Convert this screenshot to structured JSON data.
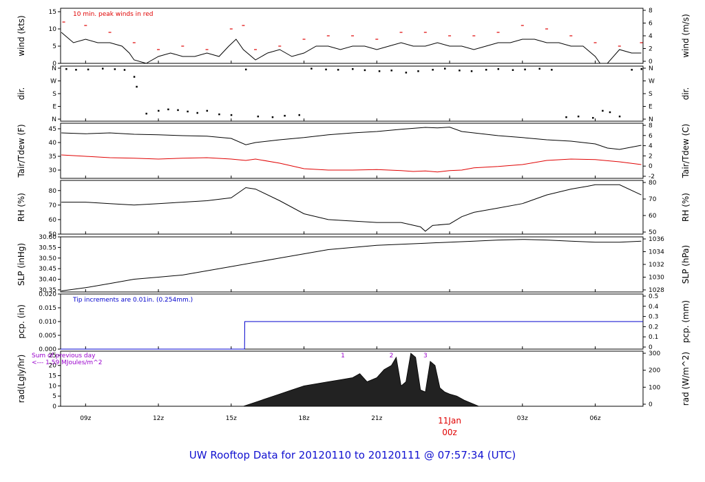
{
  "title": "UW Rooftop Data for 20120110  to  20120111 @ 07:57:34  (UTC)",
  "time_axis": {
    "ticks": [
      {
        "label": "09z",
        "hour": 9
      },
      {
        "label": "12z",
        "hour": 12
      },
      {
        "label": "15z",
        "hour": 15
      },
      {
        "label": "18z",
        "hour": 18
      },
      {
        "label": "21z",
        "hour": 21
      },
      {
        "label": "03z",
        "hour": 27
      },
      {
        "label": "06z",
        "hour": 30
      }
    ],
    "day_marker": {
      "date": "11Jan",
      "hour_label": "00z",
      "hour": 24,
      "color": "#e00000"
    },
    "start_hour": 7.97,
    "end_hour": 31.97
  },
  "colors": {
    "series": "#000000",
    "dewpoint": "#e00000",
    "precip": "#0000cc",
    "annotation_red": "#e00000",
    "annotation_purple": "#9900cc",
    "title": "#1010d0"
  },
  "chart_data": [
    {
      "type": "line",
      "id": "wind",
      "ylabel_left": "wind (kts)",
      "ylabel_right": "wind (m/s)",
      "ylim": [
        0,
        16
      ],
      "yticks_left": [
        "0",
        "5",
        "10",
        "15"
      ],
      "yticks_right": [
        "0",
        "2",
        "4",
        "6",
        "8"
      ],
      "annotation": "10 min. peak winds in red",
      "series": [
        {
          "name": "wind speed",
          "x": [
            8.0,
            8.5,
            9,
            9.5,
            10,
            10.5,
            10.8,
            11,
            11.5,
            12,
            12.5,
            13,
            13.5,
            14,
            14.5,
            14.9,
            15.2,
            15.5,
            16,
            16.5,
            17,
            17.5,
            18,
            18.5,
            19,
            19.5,
            20,
            20.5,
            21,
            21.5,
            22,
            22.5,
            23,
            23.5,
            24,
            24.5,
            25,
            25.5,
            26,
            26.5,
            27,
            27.5,
            28,
            28.5,
            29,
            29.5,
            30,
            30.2,
            30.5,
            31,
            31.5,
            31.9
          ],
          "values": [
            9,
            6,
            7,
            6,
            6,
            5,
            3,
            1,
            0,
            2,
            3,
            2,
            2,
            3,
            2,
            5,
            7,
            4,
            1,
            3,
            4,
            2,
            3,
            5,
            5,
            4,
            5,
            5,
            4,
            5,
            6,
            5,
            5,
            6,
            5,
            5,
            4,
            5,
            6,
            6,
            7,
            7,
            6,
            6,
            5,
            5,
            2,
            0,
            0,
            4,
            3,
            3
          ]
        },
        {
          "name": "10 min. peak winds",
          "x": [
            8.1,
            9,
            10,
            11,
            12,
            13,
            14,
            15,
            15.5,
            16,
            17,
            18,
            19,
            20,
            21,
            22,
            23,
            24,
            25,
            26,
            27,
            28,
            29,
            30,
            31,
            31.9
          ],
          "values": [
            12,
            11,
            9,
            6,
            4,
            5,
            4,
            10,
            11,
            4,
            5,
            7,
            8,
            8,
            7,
            9,
            9,
            8,
            8,
            9,
            11,
            10,
            8,
            6,
            5,
            6
          ]
        }
      ]
    },
    {
      "type": "scatter",
      "id": "dir",
      "ylabel_left": "dir.",
      "ylabel_right": "dir.",
      "yticks_left": [
        "N",
        "E",
        "S",
        "W",
        "N"
      ],
      "yticks_right": [
        "N",
        "E",
        "S",
        "W",
        "N"
      ],
      "series": [
        {
          "name": "wind direction",
          "x": [
            8.2,
            8.6,
            9.1,
            9.7,
            10.2,
            10.6,
            11,
            11.1,
            11.5,
            12,
            12.4,
            12.8,
            13.2,
            13.6,
            14,
            14.5,
            15,
            15.6,
            16.1,
            16.7,
            17.2,
            17.8,
            18.3,
            18.9,
            19.4,
            20,
            20.5,
            21.1,
            21.6,
            22.2,
            22.7,
            23.3,
            23.8,
            24.4,
            24.9,
            25.5,
            26,
            26.6,
            27.1,
            27.7,
            28.2,
            28.8,
            29.3,
            29.9,
            30.3,
            30.6,
            31,
            31.5,
            31.9
          ],
          "values": [
            355,
            350,
            352,
            358,
            354,
            349,
            300,
            230,
            40,
            60,
            70,
            65,
            55,
            45,
            60,
            35,
            30,
            352,
            20,
            15,
            25,
            30,
            358,
            352,
            350,
            355,
            347,
            340,
            345,
            330,
            340,
            350,
            358,
            345,
            340,
            350,
            355,
            348,
            352,
            357,
            350,
            15,
            20,
            10,
            60,
            50,
            20,
            350,
            355
          ]
        }
      ]
    },
    {
      "type": "line",
      "id": "temp",
      "ylabel_left": "Tair/Tdew (F)",
      "ylabel_right": "Tair/Tdew (C)",
      "ylim": [
        27,
        47
      ],
      "yticks_left": [
        "30",
        "35",
        "40",
        "45"
      ],
      "yticks_right": [
        "-2",
        "0",
        "2",
        "4",
        "6",
        "8"
      ],
      "series": [
        {
          "name": "Tair",
          "x": [
            8,
            9,
            10,
            11,
            12,
            13,
            14,
            15,
            15.6,
            16,
            17,
            18,
            19,
            20,
            21,
            22,
            23,
            23.5,
            24,
            24.5,
            25,
            26,
            27,
            28,
            29,
            30,
            30.5,
            31,
            31.9
          ],
          "values": [
            43.5,
            43.2,
            43.5,
            43,
            42.8,
            42.5,
            42.3,
            41.5,
            39.2,
            40,
            41,
            41.8,
            42.8,
            43.5,
            44,
            44.8,
            45.5,
            45.3,
            45.6,
            44,
            43.5,
            42.5,
            41.8,
            41,
            40.5,
            39.5,
            38,
            37.5,
            39
          ]
        },
        {
          "name": "Tdew",
          "x": [
            8,
            9,
            10,
            11,
            12,
            13,
            14,
            15,
            15.6,
            16,
            17,
            18,
            19,
            20,
            21,
            22,
            22.5,
            23,
            23.5,
            24,
            24.5,
            25,
            26,
            27,
            28,
            29,
            30,
            31,
            31.9
          ],
          "values": [
            35.5,
            35,
            34.5,
            34.3,
            34,
            34.3,
            34.5,
            34,
            33.5,
            34,
            32.5,
            30.5,
            30,
            30,
            30.2,
            29.8,
            29.5,
            29.7,
            29.3,
            29.8,
            30,
            30.8,
            31.3,
            32,
            33.5,
            34,
            33.8,
            33,
            32
          ]
        }
      ]
    },
    {
      "type": "line",
      "id": "rh",
      "ylabel_left": "RH (%)",
      "ylabel_right": "RH (%)",
      "ylim": [
        50,
        87
      ],
      "yticks_left": [
        "50",
        "60",
        "70",
        "80"
      ],
      "yticks_right": [
        "50",
        "60",
        "70",
        "80"
      ],
      "series": [
        {
          "name": "RH",
          "x": [
            8,
            9,
            10,
            11,
            12,
            13,
            14,
            15,
            15.6,
            16,
            17,
            18,
            19,
            20,
            21,
            22,
            22.8,
            23,
            23.3,
            24,
            24.5,
            25,
            26,
            27,
            28,
            29,
            29.7,
            30,
            31,
            31.9
          ],
          "values": [
            72,
            72,
            71,
            70,
            71,
            72,
            73,
            75,
            82,
            81,
            73,
            64,
            60,
            59,
            58,
            58,
            55,
            52,
            56,
            57,
            62,
            65,
            68,
            71,
            77,
            81,
            83,
            84,
            84,
            77
          ]
        }
      ]
    },
    {
      "type": "line",
      "id": "slp",
      "ylabel_left": "SLP (inHg)",
      "ylabel_right": "SLP (hPa)",
      "ylim": [
        30.34,
        30.6
      ],
      "yticks_left": [
        "30.35",
        "30.40",
        "30.45",
        "30.50",
        "30.55",
        "30.60"
      ],
      "yticks_right": [
        "1028",
        "1030",
        "1032",
        "1034",
        "1036"
      ],
      "series": [
        {
          "name": "SLP",
          "x": [
            8,
            9,
            10,
            11,
            12,
            13,
            14,
            15,
            16,
            17,
            18,
            19,
            20,
            21,
            22,
            23,
            24,
            25,
            26,
            27,
            28,
            29,
            30,
            31,
            31.9
          ],
          "values": [
            30.345,
            30.36,
            30.38,
            30.4,
            30.41,
            30.42,
            30.44,
            30.46,
            30.48,
            30.5,
            30.52,
            30.54,
            30.55,
            30.56,
            30.565,
            30.57,
            30.575,
            30.58,
            30.585,
            30.588,
            30.585,
            30.58,
            30.575,
            30.575,
            30.58
          ]
        }
      ]
    },
    {
      "type": "line",
      "id": "pcp",
      "ylabel_left": "pcp. (in)",
      "ylabel_right": "pcp. (mm)",
      "ylim": [
        0,
        0.02
      ],
      "yticks_left": [
        "0.000",
        "0.005",
        "0.010",
        "0.015",
        "0.020"
      ],
      "yticks_right": [
        "0",
        "0.1",
        "0.2",
        "0.3",
        "0.4",
        "0.5"
      ],
      "annotation": "Tip increments are 0.01in. (0.254mm.)",
      "series": [
        {
          "name": "precip",
          "x": [
            7.97,
            15.55,
            15.56,
            31.97
          ],
          "values": [
            0,
            0,
            0.01,
            0.01
          ]
        }
      ]
    },
    {
      "type": "area",
      "id": "rad",
      "ylabel_left": "rad(Lgly/hr)",
      "ylabel_right": "rad (W/m^2)",
      "ylim": [
        0,
        27
      ],
      "yticks_left": [
        "0",
        "5",
        "10",
        "15",
        "20",
        "25"
      ],
      "yticks_right": [
        "0",
        "100",
        "200",
        "300"
      ],
      "annotations": [
        "Sum of previous day",
        "<--- 1.59 MJoules/m^2"
      ],
      "markers": [
        {
          "label": "1",
          "hour": 19.6
        },
        {
          "label": "2",
          "hour": 21.6
        },
        {
          "label": "3",
          "hour": 23.0
        }
      ],
      "series": [
        {
          "name": "radiation",
          "x": [
            15.5,
            16,
            16.5,
            17,
            17.5,
            18,
            18.5,
            19,
            19.5,
            20,
            20.3,
            20.6,
            21,
            21.3,
            21.6,
            21.8,
            22,
            22.2,
            22.4,
            22.6,
            22.8,
            23,
            23.2,
            23.4,
            23.6,
            23.8,
            24,
            24.3,
            24.6,
            25,
            25.2
          ],
          "values": [
            0,
            2,
            4,
            6,
            8,
            10,
            11,
            12,
            13,
            14,
            16,
            12,
            14,
            18,
            20,
            24,
            10,
            12,
            26,
            24,
            8,
            7,
            22,
            20,
            9,
            7,
            6,
            5,
            3,
            1,
            0
          ]
        }
      ]
    }
  ]
}
